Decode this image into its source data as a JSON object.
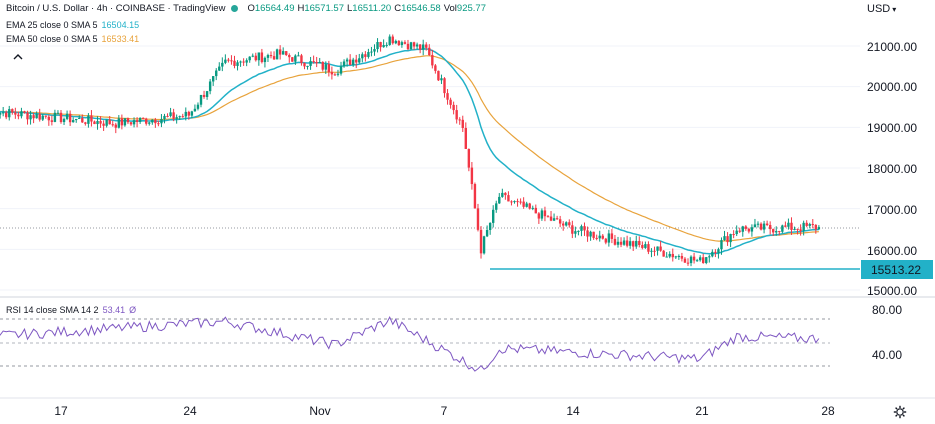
{
  "header": {
    "title": "Bitcoin / U.S. Dollar · 4h · COINBASE · TradingView",
    "status_color": "#26a69a",
    "ohlc": {
      "o_label": "O",
      "o": "16564.49",
      "h_label": "H",
      "h": "16571.57",
      "l_label": "L",
      "l": "16511.20",
      "c_label": "C",
      "c": "16546.58",
      "vol_label": "Vol",
      "vol": "925.77"
    }
  },
  "indicators": {
    "ema25": {
      "label": "EMA 25 close 0 SMA 5",
      "value": "16504.15",
      "color": "#22b1c8"
    },
    "ema50": {
      "label": "EMA 50 close 0 SMA 5",
      "value": "16533.41",
      "color": "#e8a33c"
    },
    "rsi": {
      "label": "RSI 14 close SMA 14 2",
      "value": "53.41",
      "extra": "Ø",
      "color": "#7e57c2"
    }
  },
  "price_axis": {
    "currency": "USD",
    "ticks": [
      "21000.00",
      "20000.00",
      "19000.00",
      "18000.00",
      "17000.00",
      "16000.00",
      "15000.00"
    ],
    "support_label": "15513.22"
  },
  "rsi_axis": {
    "ticks": [
      "80.00",
      "40.00"
    ]
  },
  "time_axis": {
    "labels": [
      "17",
      "24",
      "Nov",
      "7",
      "14",
      "21",
      "28"
    ]
  },
  "icons": {
    "collapse": "collapse-chevron-icon",
    "settings": "gear-icon",
    "currency_menu": "chevron-down-icon"
  },
  "colors": {
    "up": "#089981",
    "down": "#f23645",
    "ema25": "#22b1c8",
    "ema50": "#e8a33c",
    "rsi": "#7e57c2",
    "support_line": "#22b1c8"
  },
  "chart_data": {
    "type": "candlestick",
    "timeframe": "4h",
    "symbol": "BTCUSD",
    "ylim": [
      14800,
      21600
    ],
    "support_level": 15513.22,
    "key_closes": [
      {
        "date": "2022-10-13",
        "close": 19400
      },
      {
        "date": "2022-10-20",
        "close": 19100
      },
      {
        "date": "2022-10-24",
        "close": 19300
      },
      {
        "date": "2022-10-26",
        "close": 20600
      },
      {
        "date": "2022-10-29",
        "close": 20800
      },
      {
        "date": "2022-11-01",
        "close": 20400
      },
      {
        "date": "2022-11-04",
        "close": 21200
      },
      {
        "date": "2022-11-06",
        "close": 20900
      },
      {
        "date": "2022-11-08",
        "close": 19000
      },
      {
        "date": "2022-11-09",
        "close": 16000
      },
      {
        "date": "2022-11-10",
        "close": 17300
      },
      {
        "date": "2022-11-14",
        "close": 16500
      },
      {
        "date": "2022-11-21",
        "close": 15700
      },
      {
        "date": "2022-11-23",
        "close": 16500
      },
      {
        "date": "2022-11-27",
        "close": 16546.58
      }
    ],
    "rsi_key_values": [
      {
        "date": "2022-10-13",
        "value": 55
      },
      {
        "date": "2022-10-26",
        "value": 68
      },
      {
        "date": "2022-11-01",
        "value": 48
      },
      {
        "date": "2022-11-04",
        "value": 69
      },
      {
        "date": "2022-11-09",
        "value": 26
      },
      {
        "date": "2022-11-10",
        "value": 45
      },
      {
        "date": "2022-11-21",
        "value": 36
      },
      {
        "date": "2022-11-23",
        "value": 55
      },
      {
        "date": "2022-11-27",
        "value": 53.41
      }
    ],
    "rsi_ylim": [
      20,
      90
    ],
    "rsi_bands": [
      70,
      50,
      30
    ]
  }
}
